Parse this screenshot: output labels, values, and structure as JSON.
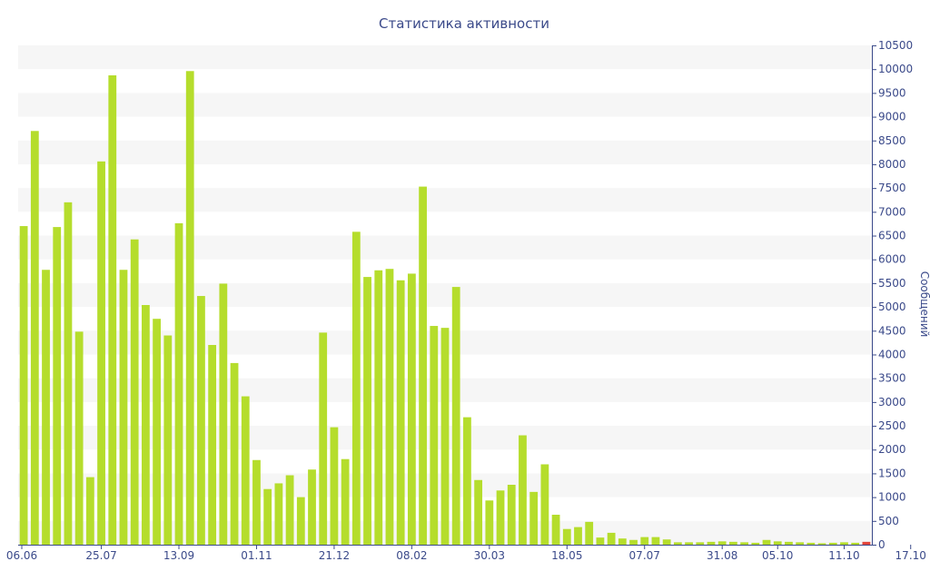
{
  "chart_data": {
    "type": "bar",
    "title": "Статистика активности",
    "xlabel": "",
    "ylabel": "Сообщений",
    "y_axis_side": "right",
    "ylim": [
      0,
      10500
    ],
    "y_ticks": [
      0,
      500,
      1000,
      1500,
      2000,
      2500,
      3000,
      3500,
      4000,
      4500,
      5000,
      5500,
      6000,
      6500,
      7000,
      7500,
      8000,
      8500,
      9000,
      9500,
      10000,
      10500
    ],
    "x_ticks": [
      {
        "label": "06.06",
        "index": 0
      },
      {
        "label": "25.07",
        "index": 7
      },
      {
        "label": "13.09",
        "index": 14
      },
      {
        "label": "01.11",
        "index": 21
      },
      {
        "label": "21.12",
        "index": 28
      },
      {
        "label": "08.02",
        "index": 35
      },
      {
        "label": "30.03",
        "index": 42
      },
      {
        "label": "18.05",
        "index": 49
      },
      {
        "label": "07.07",
        "index": 56
      },
      {
        "label": "31.08",
        "index": 63
      },
      {
        "label": "05.10",
        "index": 68
      },
      {
        "label": "11.10",
        "index": 74
      },
      {
        "label": "17.10",
        "index": 80
      }
    ],
    "grid": "alternating horizontal bands",
    "colors": {
      "bar": "#b5dd2c",
      "last_bar": "#e2453c",
      "band": "#f6f6f6",
      "axis": "#3b4a8a"
    },
    "values": [
      6700,
      8700,
      5780,
      6680,
      7200,
      4480,
      1420,
      8060,
      9870,
      5780,
      6420,
      5040,
      4750,
      4400,
      6760,
      9960,
      5230,
      4200,
      5490,
      3820,
      3120,
      1780,
      1170,
      1290,
      1460,
      1000,
      1580,
      4460,
      2470,
      1800,
      6580,
      5630,
      5770,
      5800,
      5560,
      5700,
      7530,
      4600,
      4560,
      5420,
      2680,
      1360,
      930,
      1140,
      1260,
      2300,
      1110,
      1690,
      630,
      330,
      370,
      480,
      150,
      250,
      130,
      100,
      160,
      160,
      110,
      50,
      50,
      50,
      60,
      70,
      60,
      50,
      40,
      100,
      70,
      60,
      50,
      40,
      30,
      40,
      50,
      40,
      60
    ]
  }
}
